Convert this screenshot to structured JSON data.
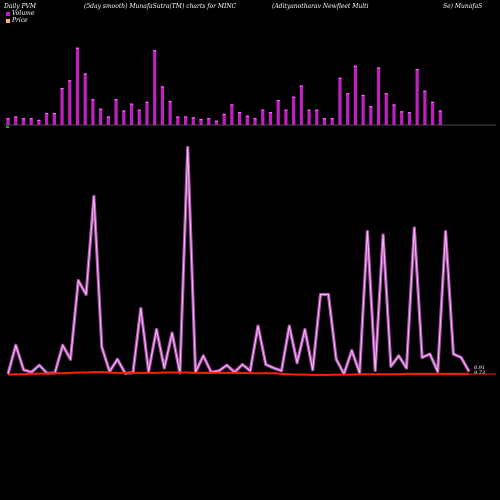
{
  "header": {
    "left": "Daily PVM",
    "center_left": "(5day smooth) MunafaSutra(TM) charts for MINC",
    "center_right": "(Adityanotharav Newfleet Multi",
    "right": "Se) MunafaS"
  },
  "legend": {
    "volume_label": "Volume",
    "price_label": "Price"
  },
  "colors": {
    "background": "#000000",
    "volume": "#c020c0",
    "volume_line": "#b050b0",
    "price": "#ff2000",
    "baseline": "#666666",
    "marker": "#22aa22"
  },
  "chart_data": [
    {
      "type": "bar",
      "name": "volume",
      "values": [
        0.8,
        1.0,
        0.8,
        0.8,
        0.6,
        1.4,
        1.4,
        4.3,
        5.2,
        9.0,
        6.0,
        3.0,
        1.9,
        1.0,
        3.0,
        1.7,
        2.5,
        1.8,
        2.7,
        8.7,
        4.5,
        2.8,
        1.0,
        1.0,
        0.9,
        0.7,
        0.8,
        0.5,
        1.3,
        2.4,
        1.5,
        1.1,
        0.8,
        1.8,
        1.5,
        2.9,
        1.8,
        3.3,
        4.6,
        1.8,
        1.8,
        0.8,
        0.8,
        5.5,
        3.7,
        6.9,
        3.5,
        2.2,
        6.7,
        3.7,
        2.4,
        1.6,
        1.5,
        6.5,
        4.0,
        2.7,
        1.7
      ]
    },
    {
      "type": "line",
      "name": "volume_smoothed",
      "values": [
        0.3,
        8.5,
        1.5,
        0.8,
        2.8,
        0.5,
        0.6,
        8.5,
        4.5,
        27.0,
        23.0,
        51.0,
        8.0,
        1.0,
        4.5,
        0.5,
        0.7,
        19.0,
        1.0,
        13.0,
        2.0,
        12.0,
        0.6,
        65.0,
        0.8,
        5.5,
        0.8,
        1.2,
        2.8,
        0.8,
        3.0,
        1.2,
        14.0,
        3.0,
        2.0,
        1.2,
        14.0,
        3.5,
        13.0,
        1.5,
        23.0,
        23.0,
        4.5,
        0.3,
        7.0,
        0.6,
        41.0,
        1.3,
        40.0,
        2.5,
        5.5,
        2.0,
        42.0,
        5.0,
        6.0,
        1.0,
        41.0,
        6.0,
        5.0,
        1.0
      ]
    },
    {
      "type": "line",
      "name": "price",
      "values": [
        0.4,
        0.5,
        0.5,
        0.6,
        0.7,
        0.7,
        0.8,
        0.8,
        0.9,
        1.0,
        1.0,
        1.1,
        1.1,
        1.0,
        0.9,
        0.9,
        0.9,
        0.9,
        0.9,
        0.9,
        1.0,
        1.0,
        1.0,
        1.0,
        0.9,
        0.9,
        0.9,
        0.9,
        0.9,
        0.9,
        0.9,
        0.8,
        0.8,
        0.8,
        0.8,
        0.6,
        0.5,
        0.4,
        0.4,
        0.3,
        0.3,
        0.3,
        0.4,
        0.4,
        0.4,
        0.5,
        0.5,
        0.5,
        0.5,
        0.5,
        0.5,
        0.6,
        0.6,
        0.6,
        0.6,
        0.6,
        0.6,
        0.6,
        0.6,
        0.6
      ],
      "last_labels": [
        "6.91",
        "9.73"
      ]
    }
  ]
}
